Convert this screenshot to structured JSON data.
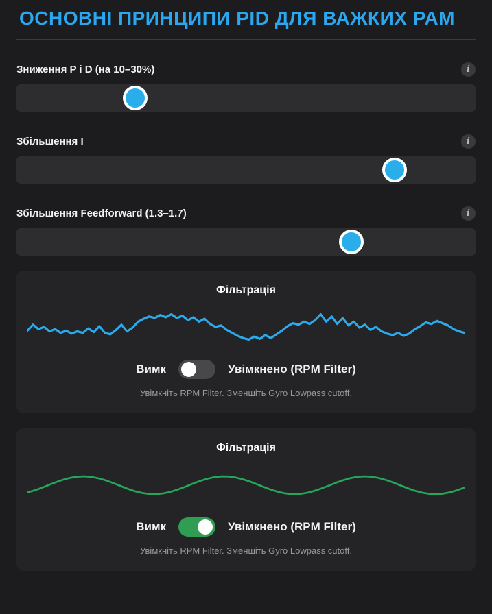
{
  "page": {
    "title": "ОСНОВНІ ПРИНЦИПИ PID ДЛЯ ВАЖКИХ РАМ"
  },
  "colors": {
    "accent_blue": "#2ba7f0",
    "thumb_blue": "#29aeea",
    "noisy_line_blue": "#2BAAEC",
    "filtered_line_green": "#26A65B",
    "toggle_on_green": "#2f9e52",
    "toggle_off_gray": "#48484a",
    "page_bg": "#1c1c1e",
    "card_bg": "#242426"
  },
  "info_icon_glyph": "i",
  "sliders": [
    {
      "label": "Зниження P і D (на 10–30%)",
      "value_percent": 26.5
    },
    {
      "label": "Збільшення I",
      "value_percent": 83
    },
    {
      "label": "Збільшення Feedforward (1.3–1.7)",
      "value_percent": 73.5
    }
  ],
  "cards": [
    {
      "title": "Фільтрація",
      "toggle": {
        "state": "off",
        "label_left": "Вимк",
        "label_right": "Увімкнено (RPM Filter)"
      },
      "hint": "Увімкніть RPM Filter. Зменшіть Gyro Lowpass cutoff."
    },
    {
      "title": "Фільтрація",
      "toggle": {
        "state": "on",
        "label_left": "Вимк",
        "label_right": "Увімкнено (RPM Filter)"
      },
      "hint": "Увімкніть RPM Filter. Зменшіть Gyro Lowpass cutoff."
    }
  ],
  "chart_data": [
    {
      "type": "line",
      "title": "Фільтрація",
      "xlabel": "",
      "ylabel": "",
      "axes_hidden": true,
      "legend": "none",
      "ylim": [
        0,
        70
      ],
      "series": [
        {
          "name": "gyro-noise-unfiltered",
          "color": "#2BAAEC",
          "stroke_width": 3,
          "values": [
            40,
            32,
            38,
            35,
            41,
            38,
            43,
            40,
            44,
            41,
            43,
            37,
            42,
            34,
            43,
            45,
            39,
            32,
            41,
            36,
            28,
            24,
            21,
            23,
            19,
            22,
            18,
            23,
            20,
            26,
            22,
            28,
            24,
            31,
            35,
            33,
            39,
            43,
            47,
            50,
            52,
            48,
            51,
            46,
            50,
            45,
            40,
            34,
            30,
            32,
            28,
            31,
            26,
            18,
            28,
            21,
            31,
            23,
            33,
            28,
            36,
            32,
            39,
            35,
            41,
            44,
            46,
            43,
            47,
            44,
            38,
            34,
            29,
            31,
            27,
            30,
            33,
            38,
            41,
            43
          ]
        }
      ]
    },
    {
      "type": "line",
      "title": "Фільтрація",
      "xlabel": "",
      "ylabel": "",
      "axes_hidden": true,
      "legend": "none",
      "ylim": [
        0,
        70
      ],
      "series": [
        {
          "name": "gyro-filtered-smooth",
          "color": "#26A65B",
          "stroke_width": 2.5,
          "values": [
            45.6,
            42.9,
            39.4,
            35.6,
            31.9,
            28.5,
            26.0,
            24.4,
            24.0,
            24.9,
            26.8,
            29.7,
            33.2,
            37.0,
            40.8,
            44.0,
            46.4,
            47.7,
            47.9,
            46.9,
            44.7,
            41.7,
            38.1,
            34.2,
            30.6,
            27.5,
            25.3,
            24.1,
            24.2,
            25.5,
            27.8,
            30.9,
            34.6,
            38.4,
            42.0,
            45.0,
            47.0,
            48.0,
            47.7,
            46.2,
            43.7,
            40.4,
            36.7,
            32.9,
            29.4,
            26.6,
            24.7,
            24.0,
            24.5,
            26.2,
            28.8,
            32.2,
            36.0,
            39.8,
            43.2,
            45.8,
            47.5,
            48.0,
            47.3,
            45.4,
            42.6,
            39.1
          ]
        }
      ]
    }
  ]
}
